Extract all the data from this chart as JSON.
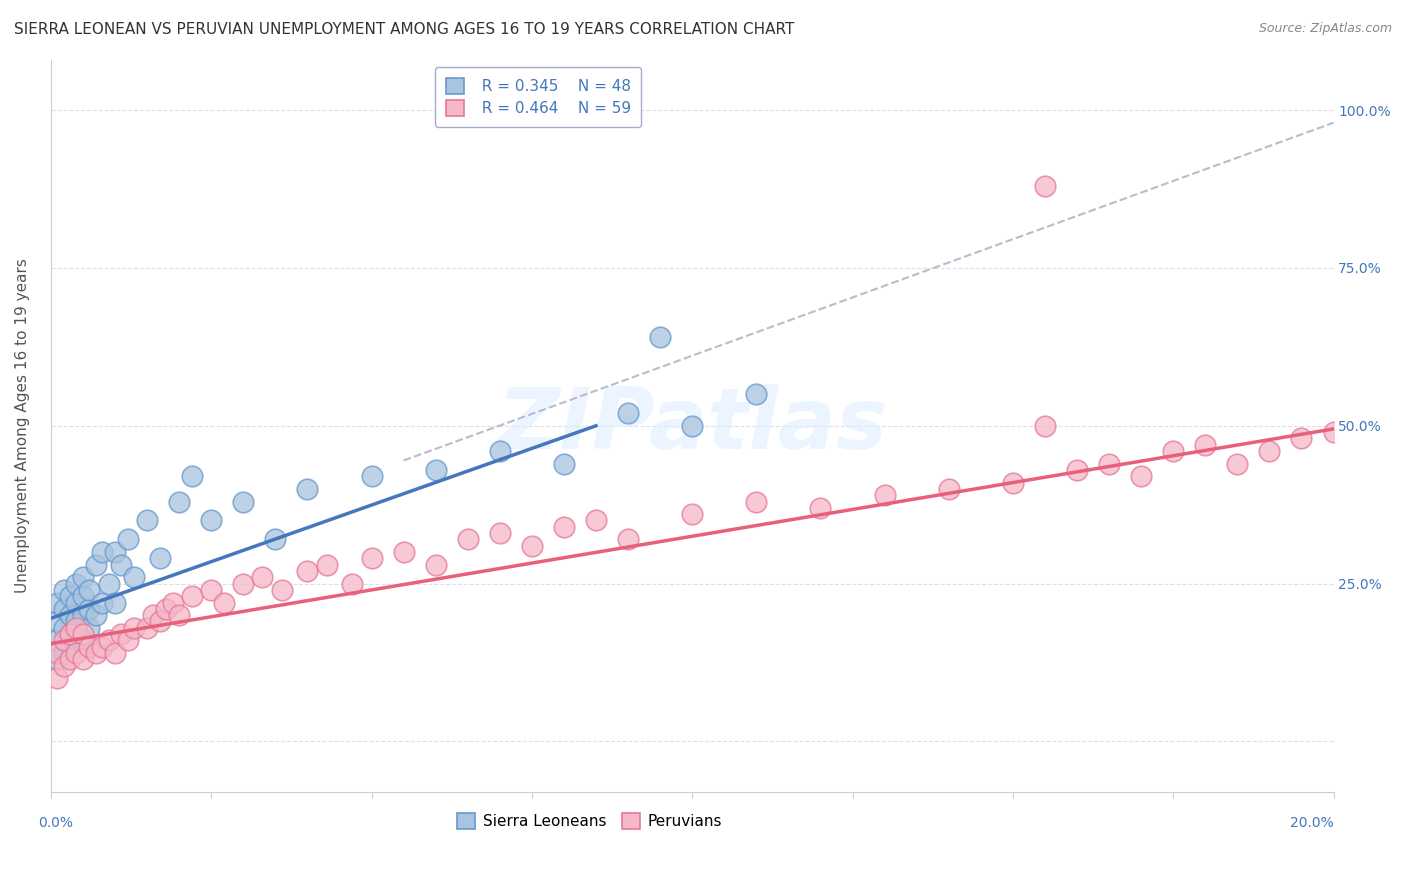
{
  "title": "SIERRA LEONEAN VS PERUVIAN UNEMPLOYMENT AMONG AGES 16 TO 19 YEARS CORRELATION CHART",
  "source": "Source: ZipAtlas.com",
  "ylabel": "Unemployment Among Ages 16 to 19 years",
  "ytick_values": [
    0.0,
    0.25,
    0.5,
    0.75,
    1.0
  ],
  "ytick_labels": [
    "",
    "25.0%",
    "50.0%",
    "75.0%",
    "100.0%"
  ],
  "xlim": [
    0.0,
    0.2
  ],
  "ylim": [
    -0.08,
    1.08
  ],
  "legend_r1": "R = 0.345",
  "legend_n1": "N = 48",
  "legend_r2": "R = 0.464",
  "legend_n2": "N = 59",
  "color_blue_fill": "#A8C4E0",
  "color_blue_edge": "#6699CC",
  "color_pink_fill": "#F4B8C8",
  "color_pink_edge": "#E8779A",
  "color_trendline_blue": "#4477BB",
  "color_trendline_pink": "#E8607A",
  "color_trendline_gray": "#BBBBCC",
  "background_color": "#FFFFFF",
  "grid_color": "#DDDDEE",
  "title_fontsize": 11,
  "axis_label_fontsize": 11,
  "tick_fontsize": 10,
  "legend_fontsize": 11,
  "blue_x": [
    0.001,
    0.001,
    0.001,
    0.001,
    0.002,
    0.002,
    0.002,
    0.002,
    0.003,
    0.003,
    0.003,
    0.003,
    0.004,
    0.004,
    0.004,
    0.005,
    0.005,
    0.005,
    0.005,
    0.006,
    0.006,
    0.006,
    0.007,
    0.007,
    0.008,
    0.008,
    0.009,
    0.01,
    0.01,
    0.011,
    0.012,
    0.013,
    0.015,
    0.017,
    0.02,
    0.022,
    0.025,
    0.03,
    0.035,
    0.04,
    0.05,
    0.06,
    0.07,
    0.08,
    0.09,
    0.095,
    0.1,
    0.11
  ],
  "blue_y": [
    0.13,
    0.16,
    0.19,
    0.22,
    0.14,
    0.18,
    0.21,
    0.24,
    0.15,
    0.2,
    0.23,
    0.17,
    0.19,
    0.22,
    0.25,
    0.16,
    0.2,
    0.23,
    0.26,
    0.18,
    0.21,
    0.24,
    0.2,
    0.28,
    0.22,
    0.3,
    0.25,
    0.22,
    0.3,
    0.28,
    0.32,
    0.26,
    0.35,
    0.29,
    0.38,
    0.42,
    0.35,
    0.38,
    0.32,
    0.4,
    0.42,
    0.43,
    0.46,
    0.44,
    0.52,
    0.64,
    0.5,
    0.55
  ],
  "pink_x": [
    0.001,
    0.001,
    0.002,
    0.002,
    0.003,
    0.003,
    0.004,
    0.004,
    0.005,
    0.005,
    0.006,
    0.007,
    0.008,
    0.009,
    0.01,
    0.011,
    0.012,
    0.013,
    0.015,
    0.016,
    0.017,
    0.018,
    0.019,
    0.02,
    0.022,
    0.025,
    0.027,
    0.03,
    0.033,
    0.036,
    0.04,
    0.043,
    0.047,
    0.05,
    0.055,
    0.06,
    0.065,
    0.07,
    0.075,
    0.08,
    0.085,
    0.09,
    0.1,
    0.11,
    0.12,
    0.13,
    0.14,
    0.15,
    0.155,
    0.16,
    0.165,
    0.17,
    0.175,
    0.18,
    0.185,
    0.19,
    0.195,
    0.2,
    0.155
  ],
  "pink_y": [
    0.1,
    0.14,
    0.12,
    0.16,
    0.13,
    0.17,
    0.14,
    0.18,
    0.13,
    0.17,
    0.15,
    0.14,
    0.15,
    0.16,
    0.14,
    0.17,
    0.16,
    0.18,
    0.18,
    0.2,
    0.19,
    0.21,
    0.22,
    0.2,
    0.23,
    0.24,
    0.22,
    0.25,
    0.26,
    0.24,
    0.27,
    0.28,
    0.25,
    0.29,
    0.3,
    0.28,
    0.32,
    0.33,
    0.31,
    0.34,
    0.35,
    0.32,
    0.36,
    0.38,
    0.37,
    0.39,
    0.4,
    0.41,
    0.5,
    0.43,
    0.44,
    0.42,
    0.46,
    0.47,
    0.44,
    0.46,
    0.48,
    0.49,
    0.88
  ],
  "blue_trend_x0": 0.0,
  "blue_trend_y0": 0.195,
  "blue_trend_x1": 0.085,
  "blue_trend_y1": 0.5,
  "pink_trend_x0": 0.0,
  "pink_trend_y0": 0.155,
  "pink_trend_x1": 0.2,
  "pink_trend_y1": 0.495,
  "gray_trend_x0": 0.055,
  "gray_trend_y0": 0.445,
  "gray_trend_x1": 0.2,
  "gray_trend_y1": 0.98
}
